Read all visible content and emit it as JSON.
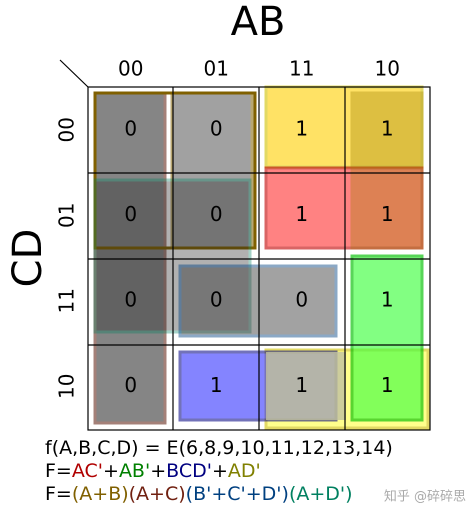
{
  "axis_titles": {
    "columns": "AB",
    "rows": "CD"
  },
  "column_headers": [
    "00",
    "01",
    "11",
    "10"
  ],
  "row_headers": [
    "00",
    "01",
    "11",
    "10"
  ],
  "cells": [
    [
      0,
      0,
      1,
      1
    ],
    [
      0,
      0,
      1,
      1
    ],
    [
      0,
      0,
      0,
      1
    ],
    [
      0,
      1,
      1,
      1
    ]
  ],
  "equations": [
    [
      {
        "text": "f(A,B,C,D) = E(6,8,9,10,11,12,13,14)",
        "color": "#000000"
      }
    ],
    [
      {
        "text": "F=",
        "color": "#000000"
      },
      {
        "text": "AC'",
        "color": "#b00000"
      },
      {
        "text": "+",
        "color": "#000000"
      },
      {
        "text": "AB'",
        "color": "#008000"
      },
      {
        "text": "+",
        "color": "#000000"
      },
      {
        "text": "BCD'",
        "color": "#000080"
      },
      {
        "text": "+",
        "color": "#000000"
      },
      {
        "text": "AD'",
        "color": "#808000"
      }
    ],
    [
      {
        "text": "F=",
        "color": "#000000"
      },
      {
        "text": "(A+B)",
        "color": "#806000"
      },
      {
        "text": "(A+C)",
        "color": "#702010"
      },
      {
        "text": "(B'+C'+D')",
        "color": "#004080"
      },
      {
        "text": "(A+D')",
        "color": "#008060"
      }
    ]
  ],
  "watermark": "知乎 @碎碎思"
}
